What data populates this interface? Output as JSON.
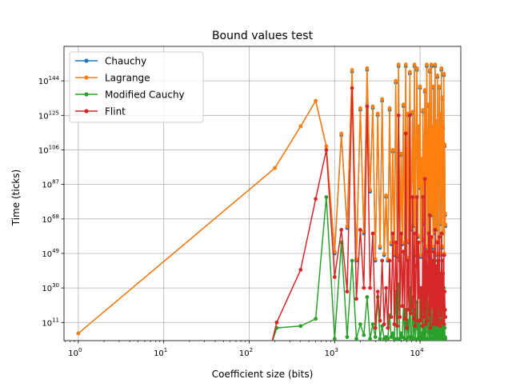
{
  "chart_data": {
    "type": "line",
    "title": "Bound values test",
    "xlabel": "Coefficient size (bits)",
    "ylabel": "Time (ticks)",
    "xscale": "log",
    "yscale": "log",
    "xlim": [
      0.68,
      30000
    ],
    "ylim_exp": [
      1,
      163
    ],
    "x_ticks": [
      {
        "value": 1,
        "base": "10",
        "exp": "0"
      },
      {
        "value": 10,
        "base": "10",
        "exp": "1"
      },
      {
        "value": 100,
        "base": "10",
        "exp": "2"
      },
      {
        "value": 1000,
        "base": "10",
        "exp": "3"
      },
      {
        "value": 10000,
        "base": "10",
        "exp": "4"
      }
    ],
    "y_ticks": [
      {
        "exp_value": 11,
        "base": "10",
        "exp": "11"
      },
      {
        "exp_value": 30,
        "base": "10",
        "exp": "30"
      },
      {
        "exp_value": 49,
        "base": "10",
        "exp": "49"
      },
      {
        "exp_value": 68,
        "base": "10",
        "exp": "68"
      },
      {
        "exp_value": 87,
        "base": "10",
        "exp": "87"
      },
      {
        "exp_value": 106,
        "base": "10",
        "exp": "106"
      },
      {
        "exp_value": 125,
        "base": "10",
        "exp": "125"
      },
      {
        "exp_value": 144,
        "base": "10",
        "exp": "144"
      }
    ],
    "grid": true,
    "legend_position": "top-left",
    "note": "y values are log10 of time in ticks",
    "series": [
      {
        "name": "Chauchy",
        "color": "#1f77b4",
        "x": [
          1,
          200,
          400,
          600,
          800,
          1000,
          1200,
          1400,
          1600,
          1800,
          2000,
          2200,
          2400,
          2600,
          2800,
          3000,
          3200,
          3400,
          3600,
          3800,
          4000,
          4200,
          4400,
          4600,
          4800,
          5000,
          5200,
          5400,
          5600,
          5800,
          6000,
          6200,
          6400,
          6600,
          6800,
          7000,
          7200,
          7400,
          7600,
          7800,
          8000,
          8200,
          8400,
          8600,
          8800,
          9000,
          9200,
          9400,
          9600,
          9800,
          10000,
          10200,
          10400,
          10600,
          10800,
          11000,
          11200,
          11400,
          11600,
          11800,
          12000,
          12200,
          12400,
          12600,
          12800,
          13000,
          13200,
          13400,
          13600,
          13800,
          14000,
          14200,
          14400,
          14600,
          14800,
          15000,
          15200,
          15400,
          15600,
          15800,
          16000,
          16200,
          16400,
          16600,
          16800,
          17000,
          17200,
          17400,
          17600,
          17800,
          18000,
          18200,
          18400,
          18600,
          18800,
          19000,
          19200,
          19400,
          19600,
          19800
        ],
        "y": [
          5,
          96,
          119,
          133,
          108,
          49,
          114,
          63,
          149,
          45,
          128,
          60,
          150,
          83,
          129,
          45,
          125,
          52,
          133,
          48,
          80,
          45,
          128,
          54,
          105,
          48,
          143,
          47,
          152,
          45,
          103,
          54,
          130,
          49,
          152,
          46,
          125,
          55,
          148,
          62,
          90,
          126,
          64,
          152,
          48,
          110,
          150,
          58,
          118,
          85,
          140,
          47,
          100,
          56,
          127,
          92,
          65,
          138,
          52,
          113,
          152,
          48,
          95,
          130,
          60,
          149,
          45,
          86,
          152,
          70,
          118,
          52,
          140,
          97,
          60,
          152,
          48,
          121,
          83,
          62,
          146,
          55,
          117,
          90,
          140,
          48,
          125,
          65,
          101,
          150,
          52,
          134,
          78,
          118,
          60,
          147,
          48,
          108,
          70,
          64
        ]
      },
      {
        "name": "Lagrange",
        "color": "#ff7f0e",
        "x": [
          1,
          200,
          400,
          600,
          800,
          1000,
          1200,
          1400,
          1600,
          1800,
          2000,
          2200,
          2400,
          2600,
          2800,
          3000,
          3200,
          3400,
          3600,
          3800,
          4000,
          4200,
          4400,
          4600,
          4800,
          5000,
          5200,
          5400,
          5600,
          5800,
          6000,
          6200,
          6400,
          6600,
          6800,
          7000,
          7200,
          7400,
          7600,
          7800,
          8000,
          8200,
          8400,
          8600,
          8800,
          9000,
          9200,
          9400,
          9600,
          9800,
          10000,
          10200,
          10400,
          10600,
          10800,
          11000,
          11200,
          11400,
          11600,
          11800,
          12000,
          12200,
          12400,
          12600,
          12800,
          13000,
          13200,
          13400,
          13600,
          13800,
          14000,
          14200,
          14400,
          14600,
          14800,
          15000,
          15200,
          15400,
          15600,
          15800,
          16000,
          16200,
          16400,
          16600,
          16800,
          17000,
          17200,
          17400,
          17600,
          17800,
          18000,
          18200,
          18400,
          18600,
          18800,
          19000,
          19200,
          19400,
          19600,
          19800
        ],
        "y": [
          5,
          96,
          119,
          133,
          108,
          50,
          115,
          64,
          150,
          46,
          129,
          61,
          151,
          84,
          130,
          46,
          126,
          53,
          134,
          49,
          81,
          46,
          129,
          55,
          106,
          49,
          144,
          48,
          153,
          46,
          104,
          55,
          131,
          50,
          153,
          47,
          126,
          56,
          149,
          63,
          91,
          127,
          65,
          153,
          49,
          111,
          151,
          59,
          119,
          86,
          141,
          48,
          101,
          57,
          128,
          93,
          66,
          139,
          53,
          114,
          153,
          49,
          96,
          131,
          61,
          150,
          46,
          87,
          153,
          71,
          119,
          53,
          141,
          98,
          61,
          153,
          49,
          122,
          84,
          63,
          147,
          56,
          118,
          91,
          141,
          49,
          126,
          66,
          102,
          151,
          53,
          135,
          79,
          119,
          61,
          148,
          49,
          109,
          71,
          65
        ]
      },
      {
        "name": "Modified Cauchy",
        "color": "#2ca02c",
        "x": [
          180,
          210,
          400,
          600,
          800,
          1000,
          1200,
          1400,
          1600,
          1800,
          2000,
          2200,
          2400,
          2600,
          2800,
          3000,
          3200,
          3400,
          3600,
          3800,
          4000,
          4200,
          4400,
          4600,
          4800,
          5000,
          5200,
          5400,
          5600,
          5800,
          6000,
          6200,
          6400,
          6600,
          6800,
          7000,
          7200,
          7400,
          7600,
          7800,
          8000,
          8200,
          8400,
          8600,
          8800,
          9000,
          9200,
          9400,
          9600,
          9800,
          10000,
          10200,
          10400,
          10600,
          10800,
          11000,
          11200,
          11400,
          11600,
          11800,
          12000,
          12200,
          12400,
          12600,
          12800,
          13000,
          13200,
          13400,
          13600,
          13800,
          14000,
          14200,
          14400,
          14600,
          14800,
          15000,
          15200,
          15400,
          15600,
          15800,
          16000,
          16200,
          16400,
          16600,
          16800,
          17000,
          17200,
          17400,
          17600,
          17800,
          18000,
          18200,
          18400,
          18600,
          18800,
          19000,
          19200,
          19400,
          19600,
          19800
        ],
        "y": [
          -2,
          8,
          9,
          13,
          80,
          2,
          55,
          3,
          45,
          2,
          10,
          4,
          25,
          2,
          10,
          3,
          25,
          2,
          9,
          2,
          3,
          2,
          15,
          3,
          5,
          2,
          28,
          2,
          32,
          2,
          5,
          3,
          20,
          2,
          18,
          2,
          12,
          3,
          30,
          2,
          3,
          25,
          2,
          18,
          2,
          8,
          22,
          2,
          12,
          3,
          28,
          2,
          5,
          2,
          18,
          3,
          2,
          32,
          2,
          10,
          40,
          2,
          6,
          22,
          2,
          35,
          2,
          5,
          28,
          2,
          15,
          2,
          30,
          4,
          2,
          45,
          2,
          15,
          3,
          2,
          32,
          2,
          20,
          4,
          28,
          2,
          12,
          2,
          5,
          35,
          2,
          18,
          3,
          12,
          2,
          30,
          2,
          8,
          3,
          2
        ]
      },
      {
        "name": "Flint",
        "color": "#d62728",
        "x": [
          180,
          210,
          400,
          600,
          800,
          1000,
          1200,
          1400,
          1600,
          1800,
          2000,
          2200,
          2400,
          2600,
          2800,
          3000,
          3200,
          3400,
          3600,
          3800,
          4000,
          4200,
          4400,
          4600,
          4800,
          5000,
          5200,
          5400,
          5600,
          5800,
          6000,
          6200,
          6400,
          6600,
          6800,
          7000,
          7200,
          7400,
          7600,
          7800,
          8000,
          8200,
          8400,
          8600,
          8800,
          9000,
          9200,
          9400,
          9600,
          9800,
          10000,
          10200,
          10400,
          10600,
          10800,
          11000,
          11200,
          11400,
          11600,
          11800,
          12000,
          12200,
          12400,
          12600,
          12800,
          13000,
          13200,
          13400,
          13600,
          13800,
          14000,
          14200,
          14400,
          14600,
          14800,
          15000,
          15200,
          15400,
          15600,
          15800,
          16000,
          16200,
          16400,
          16600,
          16800,
          17000,
          17200,
          17400,
          17600,
          17800,
          18000,
          18200,
          18400,
          18600,
          18800,
          19000,
          19200,
          19400,
          19600,
          19800
        ],
        "y": [
          -2,
          11,
          40,
          79,
          106,
          36,
          62,
          28,
          140,
          24,
          62,
          30,
          130,
          30,
          60,
          8,
          28,
          12,
          45,
          10,
          30,
          8,
          45,
          14,
          60,
          10,
          55,
          9,
          125,
          14,
          60,
          20,
          50,
          13,
          115,
          8,
          45,
          18,
          125,
          16,
          20,
          80,
          13,
          60,
          9,
          42,
          80,
          12,
          55,
          25,
          30,
          12,
          30,
          9,
          80,
          20,
          14,
          90,
          10,
          40,
          50,
          12,
          35,
          60,
          15,
          70,
          8,
          25,
          58,
          20,
          45,
          10,
          50,
          18,
          11,
          62,
          10,
          42,
          22,
          12,
          55,
          10,
          45,
          20,
          58,
          9,
          38,
          15,
          28,
          60,
          11,
          45,
          18,
          38,
          12,
          48,
          10,
          28,
          18,
          14
        ]
      }
    ]
  }
}
